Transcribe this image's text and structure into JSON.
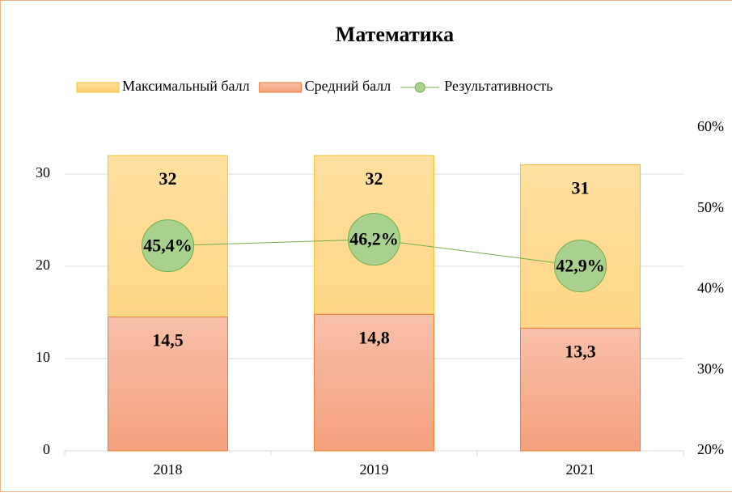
{
  "chart_data": {
    "type": "bar",
    "title": "Математика",
    "categories": [
      "2018",
      "2019",
      "2021"
    ],
    "series": [
      {
        "name": "Максимальный балл",
        "color": "#ffd27a",
        "values": [
          32,
          32,
          31
        ]
      },
      {
        "name": "Средний балл",
        "color": "#f4a582",
        "values": [
          14.5,
          14.8,
          13.3
        ],
        "value_labels": [
          "14,5",
          "14,8",
          "13,3"
        ]
      },
      {
        "name": "Результативность",
        "type": "line",
        "axis": "y2",
        "color": "#70ad47",
        "values": [
          45.4,
          46.2,
          42.9
        ],
        "value_labels": [
          "45,4%",
          "46,2%",
          "42,9%"
        ]
      }
    ],
    "ylim": [
      0,
      35
    ],
    "yticks": [
      0,
      10,
      20,
      30
    ],
    "y2lim": [
      20,
      60
    ],
    "y2ticks": [
      {
        "value": 20,
        "label": "20%"
      },
      {
        "value": 30,
        "label": "30%"
      },
      {
        "value": 40,
        "label": "40%"
      },
      {
        "value": 50,
        "label": "50%"
      },
      {
        "value": 60,
        "label": "60%"
      }
    ],
    "grid": true,
    "legend": "top"
  }
}
